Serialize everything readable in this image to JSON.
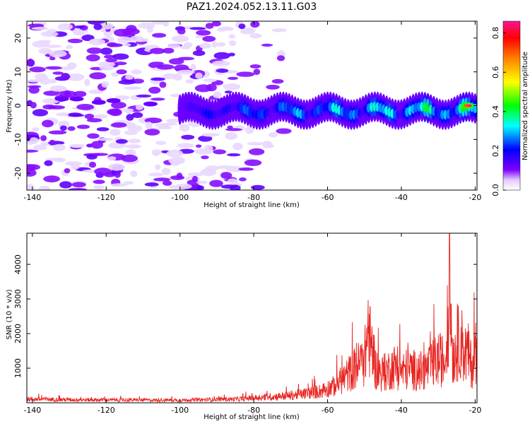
{
  "title": "PAZ1.2024.052.13.11.G03",
  "colors": {
    "snr_line": "#e8231f",
    "spectrogram_colormap": [
      "#ffffff",
      "#e2ccff",
      "#7f00ff",
      "#0000ff",
      "#00ffff",
      "#00ff00",
      "#ffff00",
      "#ff8000",
      "#ff0000",
      "#ff1493"
    ]
  },
  "chart_data": [
    {
      "type": "heatmap",
      "title": "",
      "xlabel": "Height of straight line (km)",
      "ylabel": "Frequency (Hz)",
      "xlim": [
        -141.5,
        -19.5
      ],
      "ylim": [
        -25,
        25
      ],
      "xticks": [
        -140,
        -120,
        -100,
        -80,
        -60,
        -40,
        -20
      ],
      "yticks": [
        -20,
        -10,
        0,
        10,
        20
      ],
      "colorbar": {
        "label": "Normalized spectral amplitude",
        "range": [
          0,
          0.86
        ],
        "ticks": [
          "0.0",
          "0.2",
          "0.4",
          "0.6",
          "0.8"
        ]
      },
      "features": [
        {
          "description": "diffuse scattered noise",
          "x_range": [
            -141,
            -80
          ],
          "freq_range": [
            -25,
            25
          ],
          "amplitude": 0.05
        },
        {
          "description": "narrow band near 0 Hz",
          "x_range": [
            -100,
            -20
          ],
          "freq_center": -1.5,
          "freq_halfwidth": 2.5,
          "peak_amplitude": 0.55
        },
        {
          "description": "peak at right edge",
          "x": -22,
          "freq": 0,
          "amplitude": 0.86
        }
      ]
    },
    {
      "type": "line",
      "title": "",
      "xlabel": "Height of straight line (km)",
      "ylabel": "SNR (10 * v/v)",
      "xlim": [
        -141.5,
        -19.5
      ],
      "ylim": [
        0,
        4900
      ],
      "xticks": [
        -140,
        -120,
        -100,
        -80,
        -60,
        -40,
        -20
      ],
      "yticks": [
        1000,
        2000,
        3000,
        4000
      ],
      "series": [
        {
          "x": [
            -141,
            -135,
            -130,
            -125,
            -120,
            -115,
            -110,
            -105,
            -100,
            -95,
            -90,
            -85,
            -80,
            -75,
            -70,
            -66,
            -62,
            -58,
            -55,
            -52,
            -50,
            -49,
            -47,
            -45,
            -42,
            -40,
            -38,
            -35,
            -33,
            -30,
            -28,
            -27,
            -26,
            -25,
            -24,
            -23,
            -22,
            -21,
            -20
          ],
          "y": [
            150,
            140,
            130,
            120,
            120,
            110,
            110,
            110,
            110,
            120,
            140,
            150,
            200,
            250,
            300,
            380,
            480,
            700,
            1100,
            1500,
            1800,
            2900,
            1400,
            1200,
            1500,
            1300,
            1400,
            1300,
            1400,
            1800,
            1700,
            4850,
            1900,
            2300,
            2700,
            2000,
            2100,
            1500,
            2100
          ],
          "peaks": [
            {
              "x": -49,
              "y": 2950
            },
            {
              "x": -27,
              "y": 4850
            }
          ]
        }
      ]
    }
  ]
}
